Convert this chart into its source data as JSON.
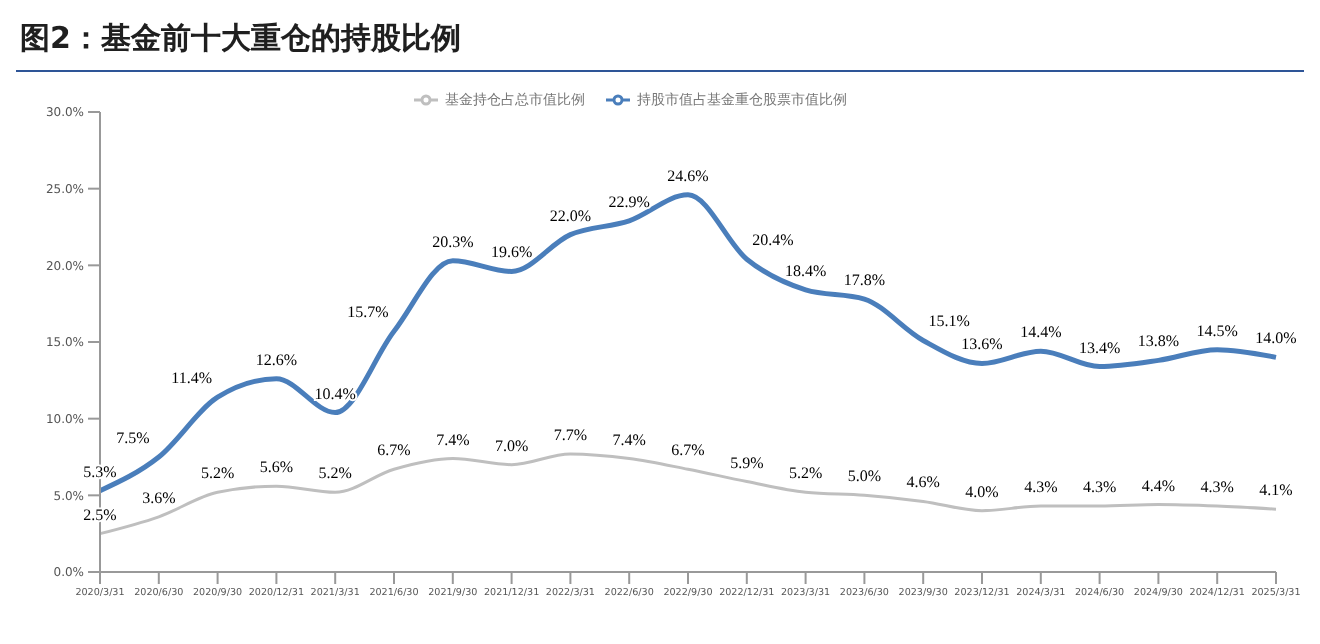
{
  "chart_data": {
    "type": "line",
    "title": "图2：基金前十大重仓的持股比例",
    "categories": [
      "2020/3/31",
      "2020/6/30",
      "2020/9/30",
      "2020/12/31",
      "2021/3/31",
      "2021/6/30",
      "2021/9/30",
      "2021/12/31",
      "2022/3/31",
      "2022/6/30",
      "2022/9/30",
      "2022/12/31",
      "2023/3/31",
      "2023/6/30",
      "2023/9/30",
      "2023/12/31",
      "2024/3/31",
      "2024/6/30",
      "2024/9/30",
      "2024/12/31",
      "2025/3/31"
    ],
    "series": [
      {
        "name": "基金持仓占总市值比例",
        "color": "#bfbfbf",
        "values": [
          2.5,
          3.6,
          5.2,
          5.6,
          5.2,
          6.7,
          7.4,
          7.0,
          7.7,
          7.4,
          6.7,
          5.9,
          5.2,
          5.0,
          4.6,
          4.0,
          4.3,
          4.3,
          4.4,
          4.3,
          4.1
        ],
        "value_labels": [
          "2.5%",
          "3.6%",
          "5.2%",
          "5.6%",
          "5.2%",
          "6.7%",
          "7.4%",
          "7.0%",
          "7.7%",
          "7.4%",
          "6.7%",
          "5.9%",
          "5.2%",
          "5.0%",
          "4.6%",
          "4.0%",
          "4.3%",
          "4.3%",
          "4.4%",
          "4.3%",
          "4.1%"
        ]
      },
      {
        "name": "持股市值占基金重仓股票市值比例",
        "color": "#4a7ebb",
        "values": [
          5.3,
          7.5,
          11.4,
          12.6,
          10.4,
          15.7,
          20.3,
          19.6,
          22.0,
          22.9,
          24.6,
          20.4,
          18.4,
          17.8,
          15.1,
          13.6,
          14.4,
          13.4,
          13.8,
          14.5,
          14.0
        ],
        "value_labels": [
          "5.3%",
          "7.5%",
          "11.4%",
          "12.6%",
          "10.4%",
          "15.7%",
          "20.3%",
          "19.6%",
          "22.0%",
          "22.9%",
          "24.6%",
          "20.4%",
          "18.4%",
          "17.8%",
          "15.1%",
          "13.6%",
          "14.4%",
          "13.4%",
          "13.8%",
          "14.5%",
          "14.0%"
        ]
      }
    ],
    "ylim": [
      0,
      30
    ],
    "yticks": [
      {
        "value": 0,
        "label": "0.0%"
      },
      {
        "value": 5,
        "label": "5.0%"
      },
      {
        "value": 10,
        "label": "10.0%"
      },
      {
        "value": 15,
        "label": "15.0%"
      },
      {
        "value": 20,
        "label": "20.0%"
      },
      {
        "value": 25,
        "label": "25.0%"
      },
      {
        "value": 30,
        "label": "30.0%"
      }
    ],
    "legend": "top",
    "grid": false,
    "marker": "none",
    "line_style": "solid"
  }
}
